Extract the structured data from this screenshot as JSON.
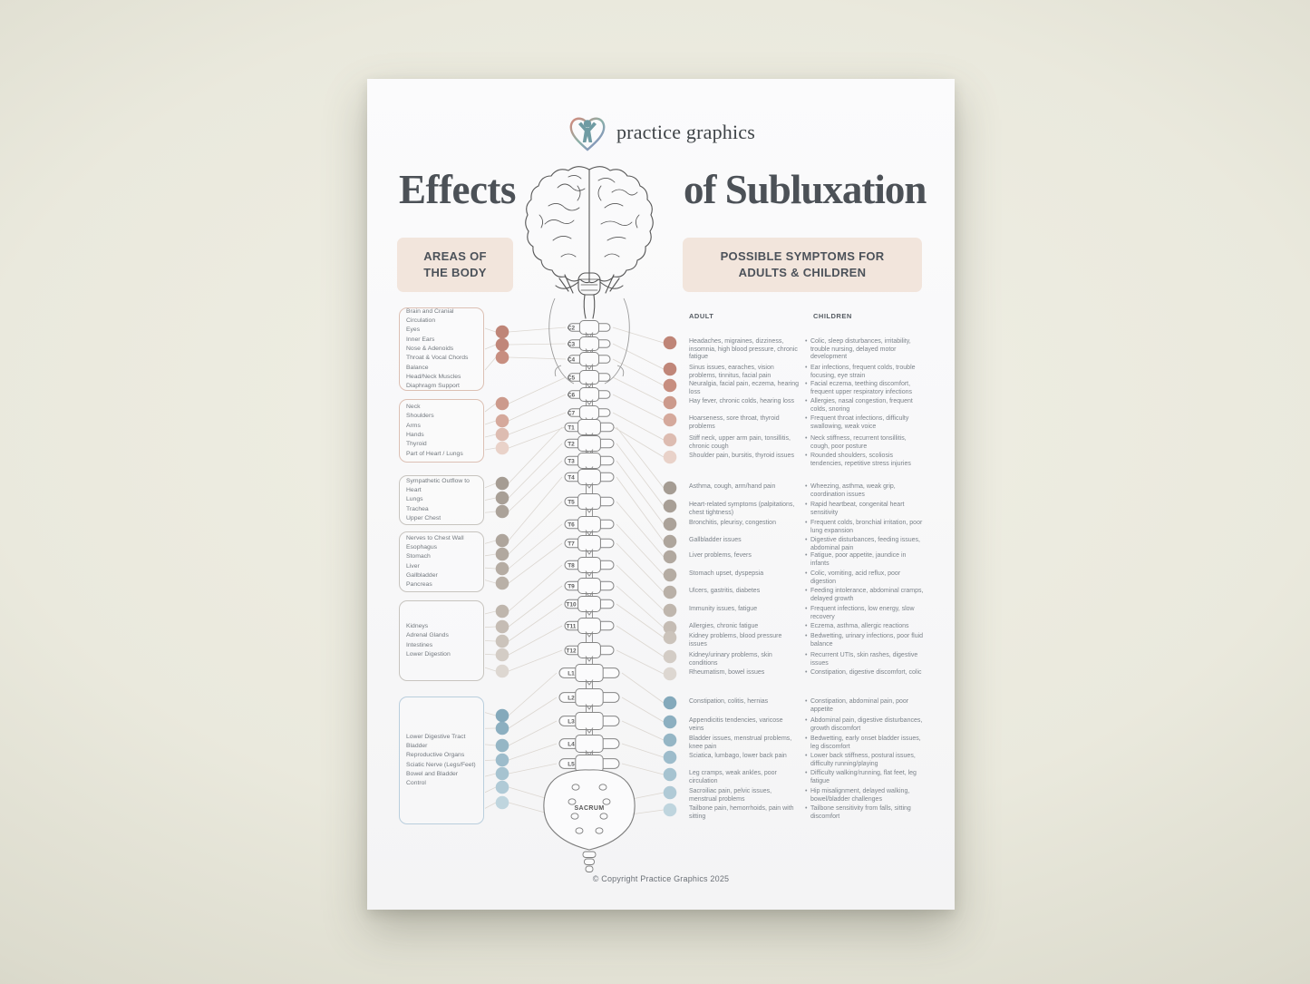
{
  "logo": {
    "text": "practice graphics"
  },
  "title": {
    "left": "Effects",
    "right": "of Subluxation"
  },
  "section_headers": {
    "areas": "AREAS OF\nTHE BODY",
    "symptoms": "POSSIBLE SYMPTOMS FOR\nADULTS & CHILDREN"
  },
  "columns": {
    "adult": "ADULT",
    "children": "CHILDREN"
  },
  "colors": {
    "chip_bg": "#f2e5dc",
    "line": "#dcd7d1",
    "rose_border": "#dcc0b4",
    "gray_border": "#c7c4bf",
    "blue_border": "#b9cedd",
    "dots": [
      "#bf8577",
      "#c08679",
      "#c78e80",
      "#cc9a8c",
      "#d5a99c",
      "#ddbcb1",
      "#e9d2c9",
      "#a59c93",
      "#a89f96",
      "#aba299",
      "#aea59c",
      "#b1a89f",
      "#b5aca3",
      "#b9b0a7",
      "#bfb6ad",
      "#c5bcb4",
      "#cbc3bb",
      "#d3ccc5",
      "#ddd7d1",
      "#84a9bb",
      "#8cafc0",
      "#95b6c5",
      "#9dbccb",
      "#a6c3d0",
      "#b0cad6",
      "#bfd5de"
    ]
  },
  "area_boxes": [
    {
      "border": "#dcc0b4",
      "items": [
        "Brain and Cranial Circulation",
        "Eyes",
        "Inner Ears",
        "Nose & Adenoids",
        "Throat & Vocal Chords",
        "Balance",
        "Head/Neck Muscles",
        "Diaphragm Support"
      ]
    },
    {
      "border": "#dcc0b4",
      "items": [
        "Neck",
        "Shoulders",
        "Arms",
        "Hands",
        "Thyroid",
        "Part of Heart / Lungs"
      ]
    },
    {
      "border": "#c7c4bf",
      "items": [
        "Sympathetic Outflow to Heart",
        "Lungs",
        "Trachea",
        "Upper Chest"
      ]
    },
    {
      "border": "#c7c4bf",
      "items": [
        "Nerves to Chest Wall",
        "Esophagus",
        "Stomach",
        "Liver",
        "Gallbladder",
        "Pancreas"
      ]
    },
    {
      "border": "#c7c4bf",
      "items": [
        "Kidneys",
        "Adrenal Glands",
        "Intestines",
        "Lower Digestion"
      ]
    },
    {
      "border": "#b9cedd",
      "items": [
        "Lower Digestive Tract",
        "Bladder",
        "Reproductive Organs",
        "Sciatic Nerve (Legs/Feet)",
        "Bowel and Bladder Control"
      ]
    }
  ],
  "spine": {
    "vertebrae": [
      "C2",
      "C3",
      "C4",
      "C5",
      "C6",
      "C7",
      "T1",
      "T2",
      "T3",
      "T4",
      "T5",
      "T6",
      "T7",
      "T8",
      "T9",
      "T10",
      "T11",
      "T12",
      "L1",
      "L2",
      "L3",
      "L4",
      "L5"
    ],
    "sacrum_label": "SACRUM"
  },
  "symptoms": [
    {
      "adult": "Headaches, migraines, dizziness, insomnia, high blood pressure, chronic fatigue",
      "children": "Colic, sleep disturbances, irritability, trouble nursing, delayed motor development"
    },
    {
      "adult": "Sinus issues, earaches, vision problems, tinnitus, facial pain",
      "children": "Ear infections, frequent colds, trouble focusing, eye strain"
    },
    {
      "adult": "Neuralgia, facial pain, eczema, hearing loss",
      "children": "Facial eczema, teething discomfort, frequent upper respiratory infections"
    },
    {
      "adult": "Hay fever, chronic colds, hearing loss",
      "children": "Allergies, nasal congestion, frequent colds, snoring"
    },
    {
      "adult": "Hoarseness, sore throat, thyroid problems",
      "children": "Frequent throat infections, difficulty swallowing, weak voice"
    },
    {
      "adult": "Stiff neck, upper arm pain, tonsillitis, chronic cough",
      "children": "Neck stiffness, recurrent tonsillitis, cough, poor posture"
    },
    {
      "adult": "Shoulder pain, bursitis, thyroid issues",
      "children": "Rounded shoulders, scoliosis tendencies, repetitive stress injuries"
    },
    {
      "adult": "Asthma, cough, arm/hand pain",
      "children": "Wheezing, asthma, weak grip, coordination issues"
    },
    {
      "adult": "Heart-related symptoms (palpitations, chest tightness)",
      "children": "Rapid heartbeat, congenital heart sensitivity"
    },
    {
      "adult": "Bronchitis, pleurisy, congestion",
      "children": "Frequent colds, bronchial irritation, poor lung expansion"
    },
    {
      "adult": "Gallbladder issues",
      "children": "Digestive disturbances, feeding issues, abdominal pain"
    },
    {
      "adult": "Liver problems, fevers",
      "children": "Fatigue, poor appetite, jaundice in infants"
    },
    {
      "adult": "Stomach upset, dyspepsia",
      "children": "Colic, vomiting, acid reflux, poor digestion"
    },
    {
      "adult": "Ulcers, gastritis, diabetes",
      "children": "Feeding intolerance, abdominal cramps, delayed growth"
    },
    {
      "adult": "Immunity issues, fatigue",
      "children": "Frequent infections, low energy, slow recovery"
    },
    {
      "adult": "Allergies, chronic fatigue",
      "children": "Eczema, asthma, allergic reactions"
    },
    {
      "adult": "Kidney problems, blood pressure issues",
      "children": "Bedwetting, urinary infections, poor fluid balance"
    },
    {
      "adult": "Kidney/urinary problems, skin conditions",
      "children": "Recurrent UTIs, skin rashes, digestive issues"
    },
    {
      "adult": "Rheumatism, bowel issues",
      "children": "Constipation, digestive discomfort, colic"
    },
    {
      "adult": "Constipation, colitis, hernias",
      "children": "Constipation, abdominal pain, poor appetite"
    },
    {
      "adult": "Appendicitis tendencies, varicose veins",
      "children": "Abdominal pain, digestive disturbances, growth discomfort"
    },
    {
      "adult": "Bladder issues, menstrual problems, knee pain",
      "children": "Bedwetting, early onset bladder issues, leg discomfort"
    },
    {
      "adult": "Sciatica, lumbago, lower back pain",
      "children": "Lower back stiffness, postural issues, difficulty running/playing"
    },
    {
      "adult": "Leg cramps, weak ankles, poor circulation",
      "children": "Difficulty walking/running, flat feet, leg fatigue"
    },
    {
      "adult": "Sacroiliac pain, pelvic issues, menstrual problems",
      "children": "Hip misalignment, delayed walking, bowel/bladder challenges"
    },
    {
      "adult": "Tailbone pain, hemorrhoids, pain with sitting",
      "children": "Tailbone sensitivity from falls, sitting discomfort"
    }
  ],
  "footer": "© Copyright Practice Graphics 2025"
}
